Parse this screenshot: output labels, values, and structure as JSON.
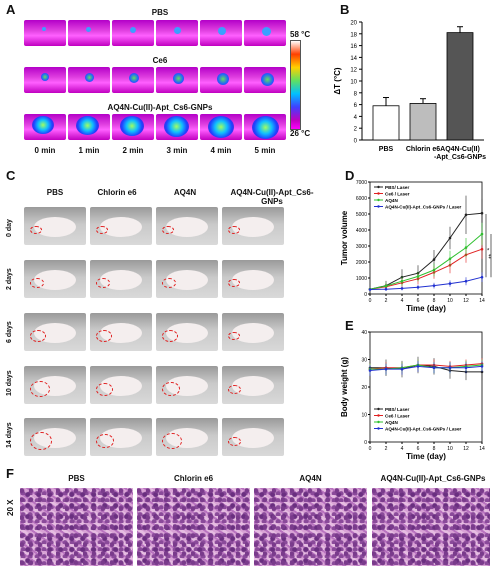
{
  "panels": [
    "A",
    "B",
    "C",
    "D",
    "E",
    "F"
  ],
  "panel_a": {
    "rows": [
      "PBS",
      "Ce6",
      "AQ4N-Cu(II)-Apt_Cs6-GNPs"
    ],
    "times": [
      "0 min",
      "1 min",
      "2 min",
      "3 min",
      "4 min",
      "5 min"
    ],
    "scale_max": "58 °C",
    "scale_min": "26 °C"
  },
  "chart_data": [
    {
      "type": "bar",
      "panel": "B",
      "categories": [
        "PBS",
        "Chlorin e6",
        "AQ4N-Cu(II)-Apt_Cs6-GNPs"
      ],
      "values": [
        5.8,
        6.2,
        18.2
      ],
      "errors": [
        1.4,
        0.8,
        1.0
      ],
      "colors": [
        "#ffffff",
        "#bdbdbd",
        "#555555"
      ],
      "ylabel": "ΔT (°C)",
      "ylim": [
        0,
        20
      ],
      "yticks": [
        0,
        2,
        4,
        6,
        8,
        10,
        12,
        14,
        16,
        18,
        20
      ]
    },
    {
      "type": "line",
      "panel": "D",
      "x": [
        0,
        2,
        4,
        6,
        8,
        10,
        12,
        14
      ],
      "series": [
        {
          "name": "PBS/ Laser",
          "color": "#222222",
          "values": [
            300,
            520,
            1050,
            1300,
            2150,
            3500,
            4950,
            5050
          ],
          "errors": [
            80,
            300,
            500,
            500,
            600,
            700,
            1200,
            900
          ]
        },
        {
          "name": "Ce6 / Laser",
          "color": "#e02020",
          "values": [
            300,
            450,
            700,
            950,
            1350,
            1800,
            2450,
            2800
          ],
          "errors": [
            80,
            200,
            300,
            350,
            400,
            500,
            500,
            600
          ]
        },
        {
          "name": "AQ4N",
          "color": "#2ec02e",
          "values": [
            300,
            500,
            800,
            1100,
            1500,
            2200,
            2900,
            3750
          ],
          "errors": [
            80,
            200,
            300,
            300,
            400,
            500,
            600,
            700
          ]
        },
        {
          "name": "AQ4N-Cu(II)-Apt_Cs6-GNPs / Laser",
          "color": "#2030d0",
          "values": [
            280,
            300,
            350,
            420,
            520,
            650,
            800,
            1050
          ],
          "errors": [
            60,
            100,
            120,
            150,
            180,
            200,
            250,
            300
          ]
        }
      ],
      "xlabel": "Time (day)",
      "ylabel": "Tumor volume",
      "ylim": [
        0,
        7000
      ],
      "yticks": [
        0,
        1000,
        2000,
        3000,
        4000,
        5000,
        6000,
        7000
      ],
      "annotations": [
        "*",
        "**"
      ]
    },
    {
      "type": "line",
      "panel": "E",
      "x": [
        0,
        2,
        4,
        6,
        8,
        10,
        12,
        14
      ],
      "series": [
        {
          "name": "PBS/ Laser",
          "color": "#222222",
          "values": [
            27,
            27,
            26.5,
            28,
            27.5,
            26,
            25.5,
            25.5
          ],
          "errors": [
            2,
            3,
            3,
            3,
            3,
            3,
            3,
            3
          ]
        },
        {
          "name": "Ce6 / Laser",
          "color": "#e02020",
          "values": [
            26.5,
            27,
            27,
            28,
            28,
            27.5,
            28,
            28.5
          ],
          "errors": [
            2,
            2,
            2,
            2,
            2,
            2,
            2,
            2
          ]
        },
        {
          "name": "AQ4N",
          "color": "#2ec02e",
          "values": [
            26.5,
            26.5,
            27,
            28,
            27,
            27,
            27.5,
            28
          ],
          "errors": [
            2,
            2,
            2,
            2,
            2,
            2,
            2,
            2
          ]
        },
        {
          "name": "AQ4N-Cu(II)-Apt_Cs6-GNPs / Laser",
          "color": "#2030d0",
          "values": [
            26,
            26.5,
            26.5,
            27.5,
            27,
            27,
            27,
            27.5
          ],
          "errors": [
            2,
            2,
            2,
            2,
            2,
            2,
            2,
            2
          ]
        }
      ],
      "xlabel": "Time (day)",
      "ylabel": "Body weight (g)",
      "ylim": [
        0,
        40
      ],
      "yticks": [
        0,
        10,
        20,
        30,
        40
      ]
    }
  ],
  "panel_c": {
    "columns": [
      "PBS",
      "Chlorin e6",
      "AQ4N",
      "AQ4N-Cu(II)-Apt_Cs6-GNPs"
    ],
    "rows": [
      "0 day",
      "2 days",
      "6 days",
      "10 days",
      "14 days"
    ]
  },
  "panel_f": {
    "columns": [
      "PBS",
      "Chlorin e6",
      "AQ4N",
      "AQ4N-Cu(II)-Apt_Cs6-GNPs"
    ],
    "magnification": "20 X"
  }
}
